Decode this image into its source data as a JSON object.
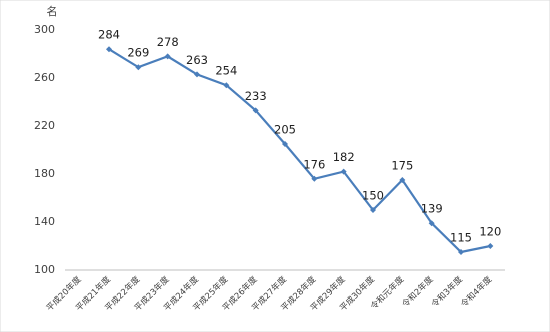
{
  "chart_data": {
    "type": "line",
    "y_unit": "名",
    "categories": [
      "平成20年度",
      "平成21年度",
      "平成22年度",
      "平成23年度",
      "平成24年度",
      "平成25年度",
      "平成26年度",
      "平成27年度",
      "平成28年度",
      "平成29年度",
      "平成30年度",
      "令和元年度",
      "令和2年度",
      "令和3年度",
      "令和4年度"
    ],
    "values": [
      null,
      284,
      269,
      278,
      263,
      254,
      233,
      205,
      176,
      182,
      150,
      175,
      139,
      115,
      120
    ],
    "color": "#4a7ebb",
    "ylim": [
      100,
      300
    ],
    "yticks": [
      100,
      140,
      180,
      220,
      260,
      300
    ],
    "grid": false
  }
}
